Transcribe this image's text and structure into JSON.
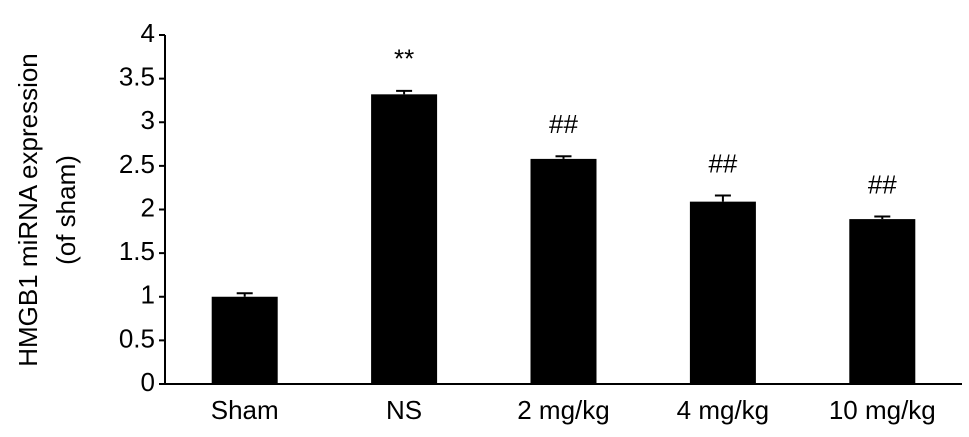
{
  "chart_data": {
    "type": "bar",
    "ylabel": [
      "HMGB1 miRNA expression",
      "(of sham)"
    ],
    "categories": [
      "Sham",
      "NS",
      "2 mg/kg",
      "4 mg/kg",
      "10 mg/kg"
    ],
    "values": [
      1.0,
      3.32,
      2.58,
      2.09,
      1.89
    ],
    "errors": [
      0.04,
      0.04,
      0.03,
      0.07,
      0.03
    ],
    "annotations": [
      null,
      "**",
      "##",
      "##",
      "##"
    ],
    "color": "#000000",
    "ylim": [
      0,
      4
    ],
    "yticks": [
      0,
      0.5,
      1,
      1.5,
      2,
      2.5,
      3,
      3.5,
      4
    ]
  }
}
